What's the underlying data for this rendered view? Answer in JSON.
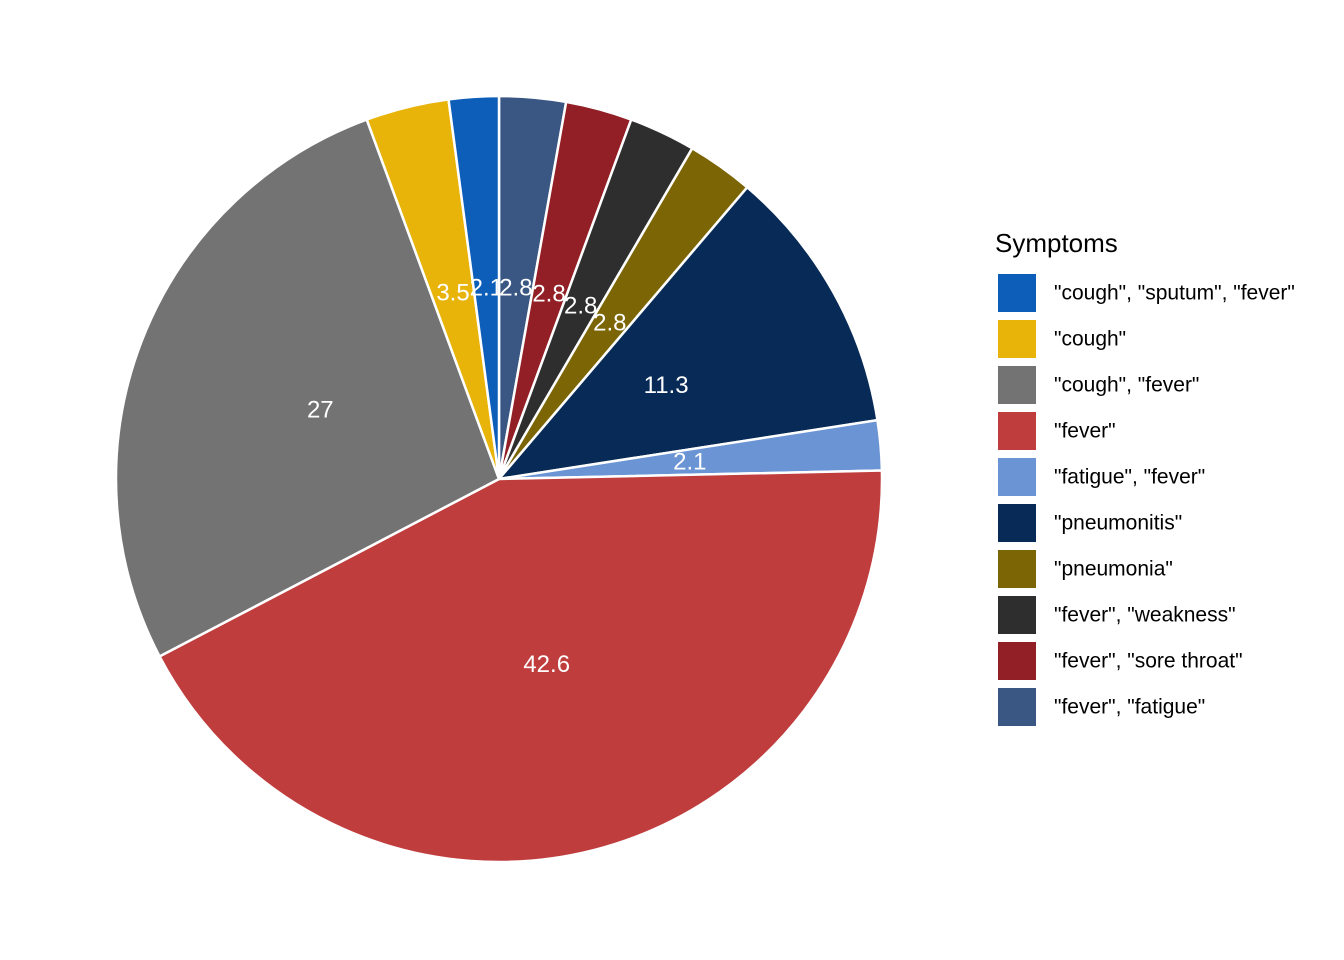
{
  "chart_data": {
    "type": "pie",
    "title": "",
    "legend": {
      "title": "Symptoms",
      "position": "right"
    },
    "slices": [
      {
        "label": "\"fever\", \"fatigue\"",
        "value": 2.8,
        "value_label": "2.8",
        "color": "#3A5683"
      },
      {
        "label": "\"fever\", \"sore throat\"",
        "value": 2.8,
        "value_label": "2.8",
        "color": "#931F26"
      },
      {
        "label": "\"fever\", \"weakness\"",
        "value": 2.8,
        "value_label": "2.8",
        "color": "#2E2E2E"
      },
      {
        "label": "\"pneumonia\"",
        "value": 2.8,
        "value_label": "2.8",
        "color": "#7C6505"
      },
      {
        "label": "\"pneumonitis\"",
        "value": 11.3,
        "value_label": "11.3",
        "color": "#072B56"
      },
      {
        "label": "\"fatigue\", \"fever\"",
        "value": 2.1,
        "value_label": "2.1",
        "color": "#6A94D4"
      },
      {
        "label": "\"fever\"",
        "value": 42.6,
        "value_label": "42.6",
        "color": "#C03D3E"
      },
      {
        "label": "\"cough\", \"fever\"",
        "value": 27,
        "value_label": "27",
        "color": "#737373"
      },
      {
        "label": "\"cough\"",
        "value": 3.5,
        "value_label": "3.5",
        "color": "#E8B40A"
      },
      {
        "label": "\"cough\", \"sputum\", \"fever\"",
        "value": 2.1,
        "value_label": "2.1",
        "color": "#0D5EB8"
      }
    ],
    "legend_order": [
      "\"cough\", \"sputum\", \"fever\"",
      "\"cough\"",
      "\"cough\", \"fever\"",
      "\"fever\"",
      "\"fatigue\", \"fever\"",
      "\"pneumonitis\"",
      "\"pneumonia\"",
      "\"fever\", \"weakness\"",
      "\"fever\", \"sore throat\"",
      "\"fever\", \"fatigue\""
    ]
  }
}
